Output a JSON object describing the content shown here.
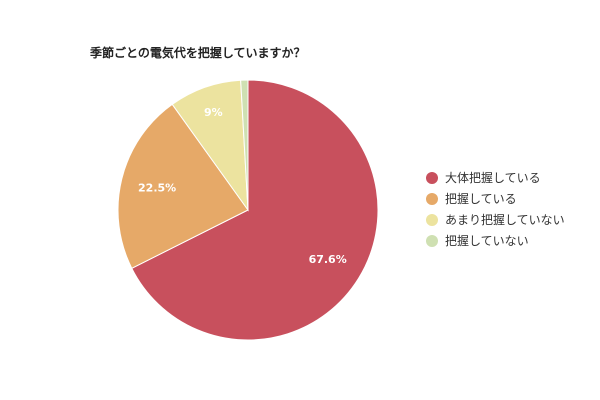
{
  "chart_data": {
    "type": "pie",
    "title": "季節ごとの電気代を把握していますか？",
    "legend_position": "right",
    "slices": [
      {
        "label": "大体把握している",
        "value": 67.6,
        "value_label": "67.6%",
        "color": "#c8505d"
      },
      {
        "label": "把握している",
        "value": 22.5,
        "value_label": "22.5%",
        "color": "#e6a968"
      },
      {
        "label": "あまり把握していない",
        "value": 9,
        "value_label": "9%",
        "color": "#ece39f"
      },
      {
        "label": "把握していない",
        "value": 0.9,
        "value_label": "",
        "color": "#cfe0b2"
      }
    ]
  }
}
